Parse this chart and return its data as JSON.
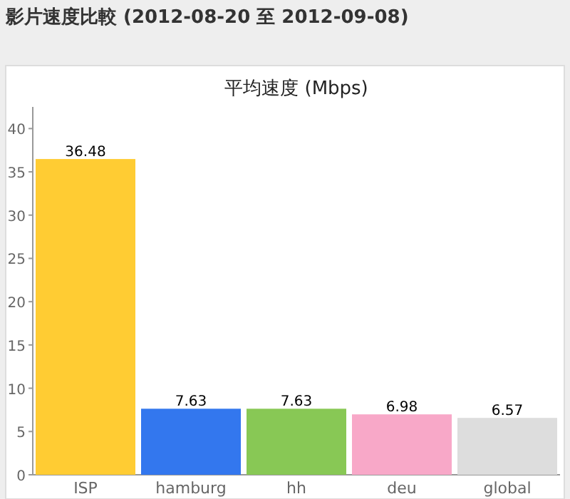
{
  "chart_data": {
    "type": "bar",
    "title": "影片速度比較 (2012-08-20 至 2012-09-08)",
    "subtitle": "平均速度 (Mbps)",
    "categories": [
      "ISP",
      "hamburg",
      "hh",
      "deu",
      "global"
    ],
    "values": [
      36.48,
      7.63,
      7.63,
      6.98,
      6.57
    ],
    "colors": [
      "#ffcc33",
      "#3377ee",
      "#88c855",
      "#f8a8c8",
      "#dddddd"
    ],
    "ylim": [
      0,
      42.5
    ],
    "yticks": [
      0,
      5,
      10,
      15,
      20,
      25,
      30,
      35,
      40
    ],
    "data_labels": true,
    "grid": false
  }
}
